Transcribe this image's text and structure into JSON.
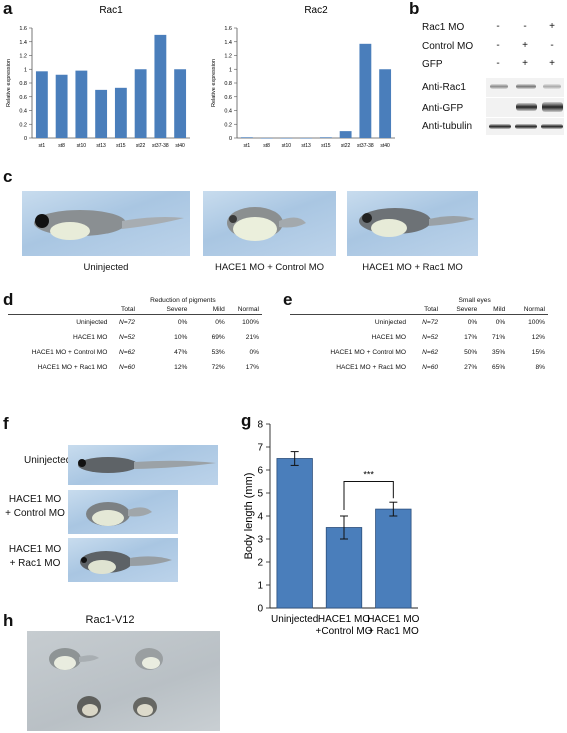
{
  "panels": {
    "a": "a",
    "b": "b",
    "c": "c",
    "d": "d",
    "e": "e",
    "f": "f",
    "g": "g",
    "h": "h"
  },
  "chart_data": [
    {
      "type": "bar",
      "title": "Rac1",
      "ylabel": "Relative expression",
      "xlabel": "",
      "categories": [
        "st1",
        "st8",
        "st10",
        "st13",
        "st15",
        "st22",
        "st37-38",
        "st40"
      ],
      "values": [
        0.97,
        0.92,
        0.98,
        0.7,
        0.73,
        1.0,
        1.5,
        1.0
      ],
      "ylim": [
        0,
        1.6
      ],
      "yticks": [
        "0",
        "0.2",
        "0.4",
        "0.6",
        "0.8",
        "1",
        "1.2",
        "1.4",
        "1.6"
      ],
      "color": "#4a7ebb"
    },
    {
      "type": "bar",
      "title": "Rac2",
      "ylabel": "Relative expression",
      "xlabel": "",
      "categories": [
        "st1",
        "st8",
        "st10",
        "st13",
        "st15",
        "st22",
        "st37-38",
        "st40"
      ],
      "values": [
        0.01,
        0.0,
        0.0,
        0.0,
        0.01,
        0.1,
        1.37,
        1.0
      ],
      "ylim": [
        0,
        1.6
      ],
      "yticks": [
        "0",
        "0.2",
        "0.4",
        "0.6",
        "0.8",
        "1",
        "1.2",
        "1.4",
        "1.6"
      ],
      "color": "#4a7ebb"
    },
    {
      "type": "table",
      "panel": "d",
      "group_header": "Reduction of pigments",
      "columns": [
        "",
        "Total",
        "Severe",
        "Mild",
        "Normal"
      ],
      "rows": [
        [
          "Uninjected",
          "N=72",
          "0%",
          "0%",
          "100%"
        ],
        [
          "HACE1 MO",
          "N=52",
          "10%",
          "69%",
          "21%"
        ],
        [
          "HACE1 MO + Control MO",
          "N=62",
          "47%",
          "53%",
          "0%"
        ],
        [
          "HACE1 MO + Rac1 MO",
          "N=60",
          "12%",
          "72%",
          "17%"
        ]
      ]
    },
    {
      "type": "table",
      "panel": "e",
      "group_header": "Small eyes",
      "columns": [
        "",
        "Total",
        "Severe",
        "Mild",
        "Normal"
      ],
      "rows": [
        [
          "Uninjected",
          "N=72",
          "0%",
          "0%",
          "100%"
        ],
        [
          "HACE1 MO",
          "N=52",
          "17%",
          "71%",
          "12%"
        ],
        [
          "HACE1 MO + Control MO",
          "N=62",
          "50%",
          "35%",
          "15%"
        ],
        [
          "HACE1 MO + Rac1 MO",
          "N=60",
          "27%",
          "65%",
          "8%"
        ]
      ]
    },
    {
      "type": "bar",
      "panel": "g",
      "title": "",
      "ylabel": "Body length (mm)",
      "xlabel": "",
      "categories": [
        "Uninjected",
        "HACE1 MO +Control MO",
        "HACE1 MO + Rac1 MO"
      ],
      "category_lines": [
        [
          "Uninjected"
        ],
        [
          "HACE1 MO",
          "+Control MO"
        ],
        [
          "HACE1 MO",
          "+ Rac1 MO"
        ]
      ],
      "values": [
        6.5,
        3.5,
        4.3
      ],
      "errors": [
        0.3,
        0.5,
        0.3
      ],
      "ylim": [
        0,
        8
      ],
      "yticks": [
        "0",
        "1",
        "2",
        "3",
        "4",
        "5",
        "6",
        "7",
        "8"
      ],
      "significance": {
        "from": 1,
        "to": 2,
        "label": "***"
      },
      "color": "#4a7ebb"
    }
  ],
  "blot": {
    "row_labels": [
      "Rac1 MO",
      "Control MO",
      "GFP"
    ],
    "signs": [
      [
        "-",
        "-",
        "+"
      ],
      [
        "-",
        "+",
        "-"
      ],
      [
        "-",
        "+",
        "+"
      ]
    ],
    "antibodies": [
      "Anti-Rac1",
      "Anti-GFP",
      "Anti-tubulin"
    ]
  },
  "panel_c": {
    "captions": [
      "Uninjected",
      "HACE1 MO + Control MO",
      "HACE1 MO + Rac1 MO"
    ]
  },
  "panel_f": {
    "labels": [
      "Uninjected",
      "HACE1 MO\n+ Control MO",
      "HACE1 MO\n+ Rac1 MO"
    ]
  },
  "panel_h": {
    "title": "Rac1-V12"
  }
}
